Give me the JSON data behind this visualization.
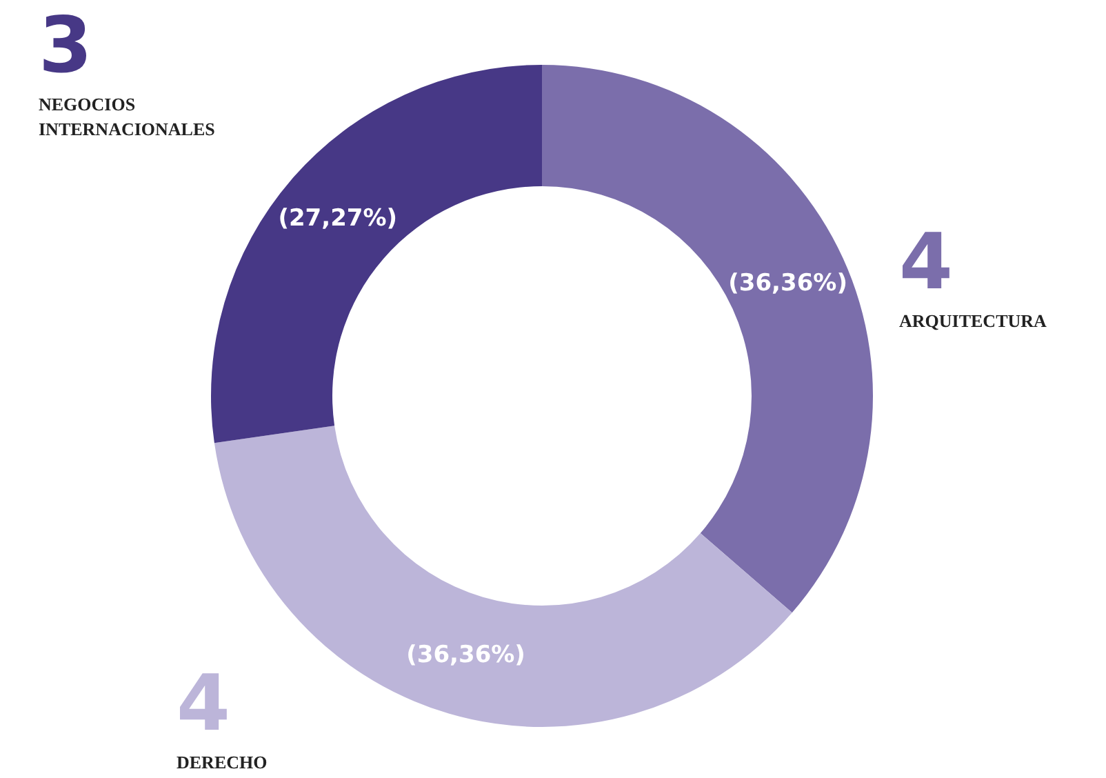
{
  "chart_data": {
    "type": "donut",
    "categories": [
      "ARQUITECTURA",
      "DERECHO",
      "NEGOCIOS INTERNACIONALES"
    ],
    "values": [
      36.36,
      36.36,
      27.27
    ],
    "value_labels": [
      "(36,36%)",
      "(36,36%)",
      "(27,27%)"
    ],
    "colors": [
      "#7b6eab",
      "#bcb5d9",
      "#473886"
    ],
    "annotations": [
      "4",
      "4",
      "3"
    ]
  }
}
